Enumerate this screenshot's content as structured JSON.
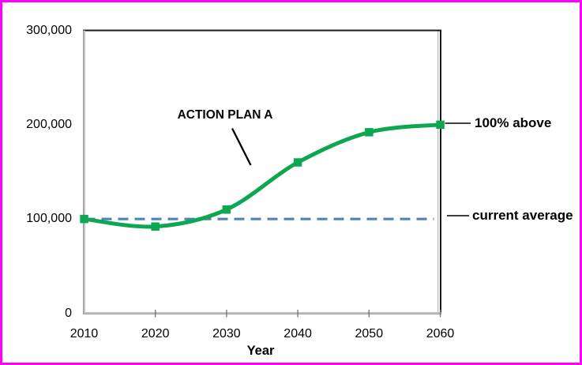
{
  "frame": {
    "border_color": "#ff00ff",
    "background_color": "#ffffff"
  },
  "chart_data": {
    "type": "line",
    "title": "",
    "xlabel": "Year",
    "ylabel": "",
    "x": [
      2010,
      2020,
      2030,
      2040,
      2050,
      2060
    ],
    "xtick_labels": [
      "2010",
      "2020",
      "2030",
      "2040",
      "2050",
      "2060"
    ],
    "yticks": [
      0,
      100000,
      200000,
      300000
    ],
    "ytick_labels": [
      "0",
      "100,000",
      "200,000",
      "300,000"
    ],
    "xlim": [
      2010,
      2060
    ],
    "ylim": [
      0,
      300000
    ],
    "grid": false,
    "legend": "none",
    "series": [
      {
        "name": "ACTION PLAN A",
        "values": [
          100000,
          92000,
          110000,
          160000,
          192000,
          200000
        ],
        "color": "#0ca750",
        "marker": "square",
        "line_style": "solid",
        "smooth": true
      }
    ],
    "reference_line": {
      "label": "current average",
      "value": 100000,
      "color": "#4f81bd",
      "line_style": "dashed"
    },
    "annotations": {
      "plan_label": "ACTION PLAN A",
      "above_label": "100% above",
      "average_label": "current average"
    }
  }
}
